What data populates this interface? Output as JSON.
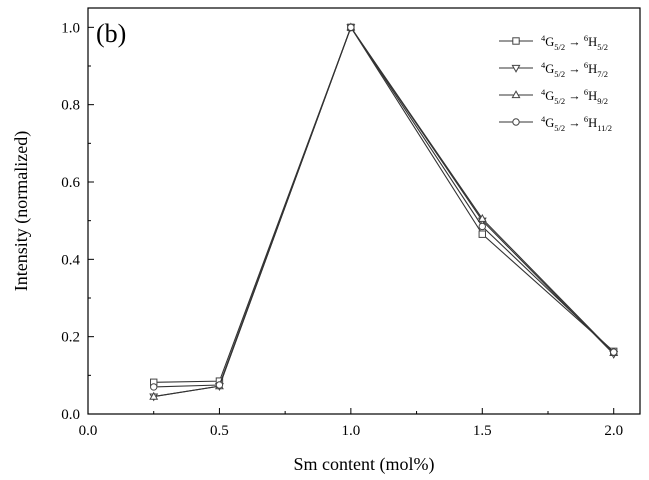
{
  "chart_data": {
    "type": "line",
    "panel_label": "(b)",
    "xlabel": "Sm content (mol%)",
    "ylabel": "Intensity (normalized)",
    "xlim": [
      0.0,
      2.1
    ],
    "ylim": [
      0.0,
      1.05
    ],
    "x_ticks": [
      "0.0",
      "0.5",
      "1.0",
      "1.5",
      "2.0"
    ],
    "y_ticks": [
      "0.0",
      "0.2",
      "0.4",
      "0.6",
      "0.8",
      "1.0"
    ],
    "grid": false,
    "legend_position": "top-right",
    "x": [
      0.25,
      0.5,
      1.0,
      1.5,
      2.0
    ],
    "series": [
      {
        "name": "4G5/2 → 6H5/2",
        "from_sup": "4",
        "from_main": "G",
        "from_sub": "5/2",
        "to_sup": "6",
        "to_main": "H",
        "to_sub": "5/2",
        "marker": "square",
        "values": [
          0.082,
          0.085,
          1.0,
          0.465,
          0.162
        ]
      },
      {
        "name": "4G5/2 → 6H7/2",
        "from_sup": "4",
        "from_main": "G",
        "from_sub": "5/2",
        "to_sup": "6",
        "to_main": "H",
        "to_sub": "7/2",
        "marker": "triangle-down",
        "values": [
          0.045,
          0.072,
          1.0,
          0.5,
          0.155
        ]
      },
      {
        "name": "4G5/2 → 6H9/2",
        "from_sup": "4",
        "from_main": "G",
        "from_sub": "5/2",
        "to_sup": "6",
        "to_main": "H",
        "to_sub": "9/2",
        "marker": "triangle-up",
        "values": [
          0.045,
          0.072,
          1.0,
          0.505,
          0.158
        ]
      },
      {
        "name": "4G5/2 → 6H11/2",
        "from_sup": "4",
        "from_main": "G",
        "from_sub": "5/2",
        "to_sup": "6",
        "to_main": "H",
        "to_sub": "11/2",
        "marker": "circle",
        "values": [
          0.07,
          0.075,
          1.0,
          0.485,
          0.16
        ]
      }
    ]
  }
}
